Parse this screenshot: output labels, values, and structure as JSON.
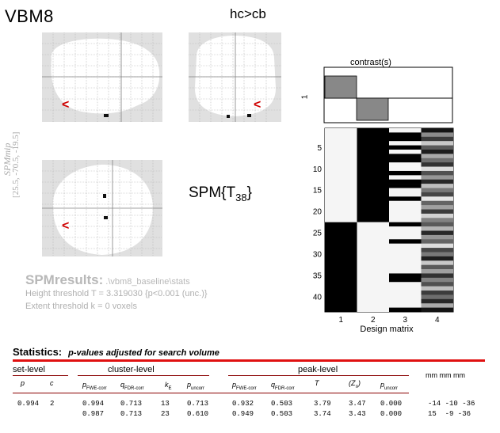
{
  "app": {
    "title": "VBM8",
    "contrast_name": "hc>cb"
  },
  "mip": {
    "side_label": "SPMmip",
    "coords": "[25.5, -70.5, -19.5]",
    "cursor_glyph": "<"
  },
  "stat_label": {
    "base": "SPM{T",
    "sub": "38",
    "close": "}"
  },
  "results": {
    "title": "SPMresults:",
    "path": " .\\vbm8_baseline\\stats",
    "height_threshold": "Height threshold T = 3.319030  {p<0.001 (unc.)}",
    "extent_threshold": "Extent threshold k = 0 voxels"
  },
  "contrast_panel": {
    "caption": "contrast(s)",
    "row_label": "1",
    "weights": [
      1,
      -1,
      0,
      0
    ]
  },
  "design_matrix": {
    "caption": "Design matrix",
    "n_rows": 43,
    "y_ticks": [
      "5",
      "10",
      "15",
      "20",
      "25",
      "30",
      "35",
      "40"
    ],
    "x_ticks": [
      "1",
      "2",
      "3",
      "4"
    ]
  },
  "statistics": {
    "heading": "Statistics:",
    "note": "p-values adjusted for search volume",
    "group_headers": {
      "set": "set-level",
      "cluster": "cluster-level",
      "peak": "peak-level",
      "mm": "mm mm mm"
    },
    "columns": {
      "set_p": "p",
      "set_c": "c",
      "cl_pfwe": "p",
      "cl_pfwe_sub": "FWE-corr",
      "cl_qfdr": "q",
      "cl_qfdr_sub": "FDR-corr",
      "cl_ke": "k",
      "cl_ke_sub": "E",
      "cl_punc": "p",
      "cl_punc_sub": "uncorr",
      "pk_pfwe": "p",
      "pk_pfwe_sub": "FWE-corr",
      "pk_qfdr": "q",
      "pk_qfdr_sub": "FDR-corr",
      "pk_t": "T",
      "pk_z": "(Z",
      "pk_z_sub": "≡",
      "pk_z_close": ")",
      "pk_punc": "p",
      "pk_punc_sub": "uncorr"
    },
    "rows": [
      {
        "set_p": "0.994",
        "set_c": "2",
        "cl_pfwe": "0.994",
        "cl_qfdr": "0.713",
        "cl_ke": "13",
        "cl_punc": "0.713",
        "pk_pfwe": "0.932",
        "pk_qfdr": "0.503",
        "pk_t": "3.79",
        "pk_z": "3.47",
        "pk_punc": "0.000",
        "mm": "-14 -10 -36"
      },
      {
        "set_p": "",
        "set_c": "",
        "cl_pfwe": "0.987",
        "cl_qfdr": "0.713",
        "cl_ke": "23",
        "cl_punc": "0.610",
        "pk_pfwe": "0.949",
        "pk_qfdr": "0.503",
        "pk_t": "3.74",
        "pk_z": "3.43",
        "pk_punc": "0.000",
        "mm": "15  -9 -36"
      }
    ]
  },
  "colors": {
    "mip_bg": "#e0e0e0",
    "brain_fill": "#ffffff",
    "grid": "#b8b8b8",
    "cursor": "#d00000",
    "accent_rule": "#e01010"
  }
}
